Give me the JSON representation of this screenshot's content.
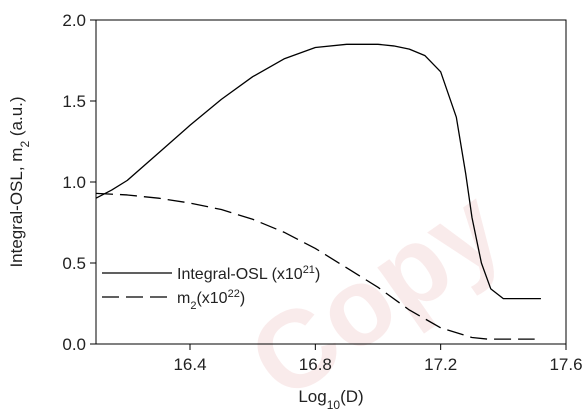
{
  "chart_data": {
    "type": "line",
    "xlabel": {
      "base": "Log",
      "sub": "10",
      "rest": "(D)"
    },
    "ylabel": {
      "before": "Integral-OSL, m",
      "sub": "2",
      "after": " (a.u.)"
    },
    "xlim": [
      16.1,
      17.6
    ],
    "ylim": [
      0.0,
      2.0
    ],
    "xticks": [
      16.4,
      16.8,
      17.2,
      17.6
    ],
    "xtick_labels": [
      "16.4",
      "16.8",
      "17.2",
      "17.6"
    ],
    "yticks": [
      0.0,
      0.5,
      1.0,
      1.5,
      2.0
    ],
    "ytick_labels": [
      "0.0",
      "0.5",
      "1.0",
      "1.5",
      "2.0"
    ],
    "grid": false,
    "legend_position": "lower-left",
    "series": [
      {
        "name": "Integral-OSL (x10^21)",
        "legend": {
          "before": "Integral-OSL (x10",
          "sup": "21",
          "after": ")"
        },
        "style": "solid",
        "color": "#000000",
        "x": [
          16.1,
          16.15,
          16.2,
          16.3,
          16.4,
          16.5,
          16.6,
          16.7,
          16.8,
          16.9,
          17.0,
          17.05,
          17.1,
          17.15,
          17.2,
          17.25,
          17.28,
          17.3,
          17.33,
          17.36,
          17.4,
          17.45,
          17.52
        ],
        "y": [
          0.9,
          0.95,
          1.01,
          1.18,
          1.35,
          1.51,
          1.65,
          1.76,
          1.83,
          1.85,
          1.85,
          1.84,
          1.82,
          1.78,
          1.68,
          1.4,
          1.05,
          0.78,
          0.5,
          0.34,
          0.28,
          0.28,
          0.28
        ]
      },
      {
        "name": "m2(x10^22)",
        "legend": {
          "before": "m",
          "sub": "2",
          "mid": "(x10",
          "sup": "22",
          "after": ")"
        },
        "style": "dashed",
        "color": "#000000",
        "x": [
          16.1,
          16.2,
          16.3,
          16.4,
          16.5,
          16.6,
          16.7,
          16.8,
          16.9,
          17.0,
          17.1,
          17.2,
          17.3,
          17.35,
          17.4,
          17.5
        ],
        "y": [
          0.93,
          0.92,
          0.9,
          0.87,
          0.83,
          0.77,
          0.69,
          0.59,
          0.47,
          0.35,
          0.21,
          0.1,
          0.04,
          0.03,
          0.03,
          0.03
        ]
      }
    ]
  },
  "watermark": "Copy"
}
